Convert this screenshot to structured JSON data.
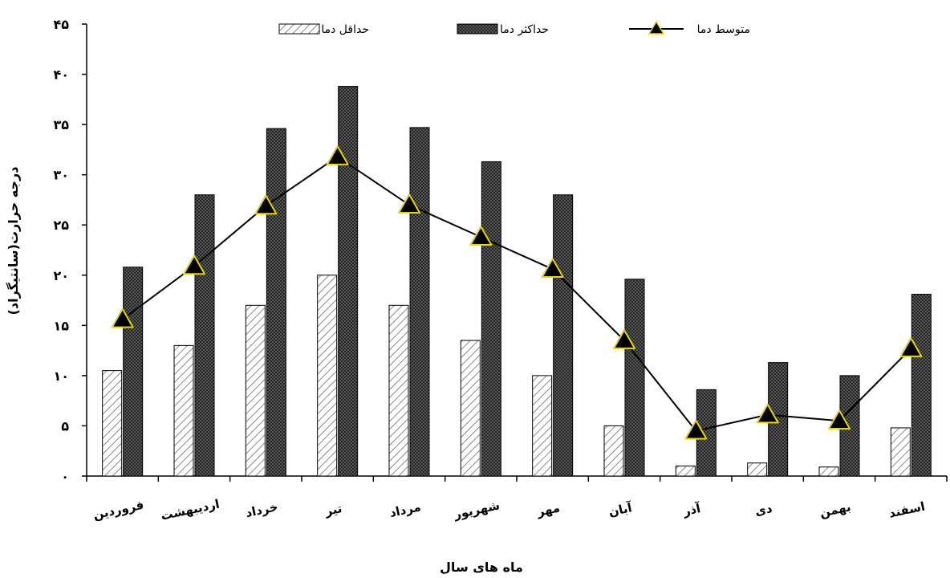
{
  "chart_data": {
    "type": "bar",
    "categories": [
      "فروردین",
      "اردیبهشت",
      "خرداد",
      "تیر",
      "مرداد",
      "شهریور",
      "مهر",
      "آبان",
      "آذر",
      "دی",
      "بهمن",
      "اسفند"
    ],
    "series": [
      {
        "name": "حداقل دما",
        "kind": "bar",
        "pattern": "diagonal-hatch",
        "values": [
          10.5,
          13,
          17,
          20,
          17,
          13.5,
          10,
          5,
          1,
          1.3,
          0.9,
          4.8
        ]
      },
      {
        "name": "حداکثر دما",
        "kind": "bar",
        "pattern": "dark-crosshatch",
        "values": [
          20.8,
          28,
          34.6,
          38.8,
          34.7,
          31.3,
          28,
          19.6,
          8.6,
          11.3,
          10,
          18.1
        ]
      },
      {
        "name": "متوسط دما",
        "kind": "line",
        "marker": "triangle",
        "values": [
          15.6,
          20.9,
          26.9,
          31.8,
          27,
          23.8,
          20.6,
          13.5,
          4.5,
          6.1,
          5.5,
          12.7
        ]
      }
    ],
    "ylim": [
      0,
      45
    ],
    "yticks": [
      0,
      5,
      10,
      15,
      20,
      25,
      30,
      35,
      40,
      45
    ],
    "ytick_labels": [
      "۰",
      "۵",
      "۱۰",
      "۱۵",
      "۲۰",
      "۲۵",
      "۳۰",
      "۳۵",
      "۴۰",
      "۴۵"
    ],
    "xlabel": "ماه های سال",
    "ylabel": "درجه حرارت(سانتیگراد)",
    "legend_position": "top",
    "grid": false,
    "colors": {
      "min_bar_fill": "#ffffff",
      "min_bar_hatch": "#8a8a8a",
      "max_bar_fill": "#6e6e6e",
      "max_bar_hatch": "#1c1c1c",
      "line": "#000000",
      "marker_fill": "#000000",
      "marker_stroke": "#e8d800"
    }
  }
}
